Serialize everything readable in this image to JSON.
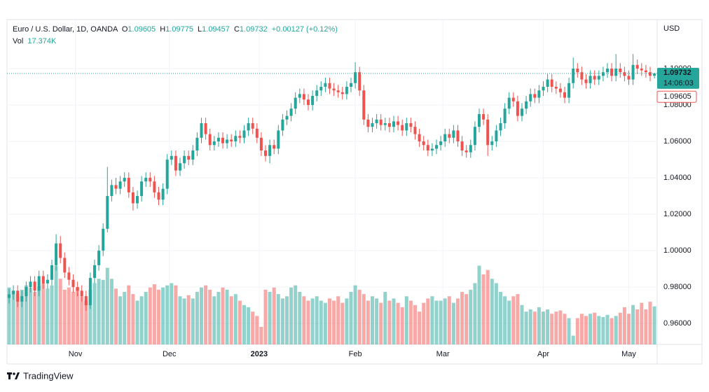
{
  "chart_data": {
    "type": "candlestick",
    "legend": {
      "symbol": "Euro / U.S. Dollar, 1D, OANDA",
      "o_label": "O",
      "o": "1.09605",
      "h_label": "H",
      "h": "1.09775",
      "l_label": "L",
      "l": "1.09457",
      "c_label": "C",
      "c": "1.09732",
      "change": "+0.00127 (+0.12%)",
      "volume_label": "Vol",
      "volume_last_label": "17.374K"
    },
    "currency": "USD",
    "last_price_label": "1.09732",
    "countdown": "14:06:03",
    "prev_close_label": "1.09605",
    "brand": "TradingView",
    "up_color": "#26a69a",
    "down_color": "#ef5350",
    "grid": true,
    "ylim": [
      0.9485,
      1.1269
    ],
    "yticks": [
      {
        "value": 0.96,
        "label": "0.96000"
      },
      {
        "value": 0.98,
        "label": "0.98000"
      },
      {
        "value": 1.0,
        "label": "1.00000"
      },
      {
        "value": 1.02,
        "label": "1.02000"
      },
      {
        "value": 1.04,
        "label": "1.04000"
      },
      {
        "value": 1.06,
        "label": "1.06000"
      },
      {
        "value": 1.08,
        "label": "1.08000"
      },
      {
        "value": 1.1,
        "label": "1.10000"
      }
    ],
    "xticks": [
      {
        "value": 15.5,
        "label": "Nov"
      },
      {
        "value": 37.5,
        "label": "Dec"
      },
      {
        "value": 58.5,
        "label": "2023"
      },
      {
        "value": 81,
        "label": "Feb"
      },
      {
        "value": 101.5,
        "label": "Mar"
      },
      {
        "value": 125,
        "label": "Apr"
      },
      {
        "value": 145,
        "label": "May"
      }
    ],
    "volume_ylim": [
      0,
      40000
    ],
    "open": [
      0.974,
      0.976,
      0.978,
      0.972,
      0.975,
      0.98,
      0.983,
      0.978,
      0.986,
      0.982,
      0.984,
      0.992,
      1.004,
      0.996,
      0.988,
      0.984,
      0.98,
      0.978,
      0.975,
      0.97,
      0.985,
      0.992,
      1.0,
      1.012,
      1.03,
      1.036,
      1.034,
      1.038,
      1.04,
      1.032,
      1.026,
      1.03,
      1.038,
      1.04,
      1.038,
      1.032,
      1.028,
      1.034,
      1.05,
      1.052,
      1.044,
      1.048,
      1.052,
      1.05,
      1.055,
      1.062,
      1.07,
      1.064,
      1.058,
      1.06,
      1.062,
      1.059,
      1.061,
      1.06,
      1.063,
      1.062,
      1.066,
      1.07,
      1.067,
      1.062,
      1.055,
      1.052,
      1.058,
      1.056,
      1.066,
      1.072,
      1.074,
      1.078,
      1.084,
      1.086,
      1.083,
      1.08,
      1.085,
      1.088,
      1.09,
      1.092,
      1.089,
      1.088,
      1.087,
      1.086,
      1.09,
      1.092,
      1.098,
      1.088,
      1.072,
      1.068,
      1.07,
      1.072,
      1.069,
      1.07,
      1.068,
      1.071,
      1.069,
      1.066,
      1.07,
      1.068,
      1.064,
      1.06,
      1.058,
      1.055,
      1.056,
      1.058,
      1.06,
      1.064,
      1.062,
      1.066,
      1.06,
      1.055,
      1.054,
      1.058,
      1.068,
      1.075,
      1.072,
      1.058,
      1.06,
      1.066,
      1.07,
      1.078,
      1.084,
      1.082,
      1.074,
      1.078,
      1.082,
      1.086,
      1.084,
      1.088,
      1.09,
      1.094,
      1.09,
      1.089,
      1.087,
      1.084,
      1.092,
      1.1,
      1.098,
      1.094,
      1.092,
      1.096,
      1.094,
      1.096,
      1.098,
      1.1,
      1.096,
      1.1,
      1.098,
      1.096,
      1.094,
      1.102,
      1.1,
      1.099,
      1.098,
      1.09605
    ],
    "high": [
      0.979,
      0.981,
      0.981,
      0.978,
      0.983,
      0.986,
      0.986,
      0.989,
      0.989,
      0.987,
      0.995,
      1.009,
      1.008,
      0.999,
      0.991,
      0.987,
      0.983,
      0.981,
      0.978,
      0.988,
      0.995,
      1.003,
      1.015,
      1.046,
      1.039,
      1.04,
      1.041,
      1.043,
      1.043,
      1.035,
      1.033,
      1.041,
      1.043,
      1.043,
      1.041,
      1.035,
      1.037,
      1.053,
      1.055,
      1.055,
      1.051,
      1.055,
      1.055,
      1.058,
      1.065,
      1.073,
      1.073,
      1.067,
      1.063,
      1.065,
      1.065,
      1.064,
      1.064,
      1.066,
      1.066,
      1.069,
      1.073,
      1.073,
      1.07,
      1.065,
      1.058,
      1.061,
      1.061,
      1.069,
      1.075,
      1.077,
      1.081,
      1.087,
      1.089,
      1.089,
      1.086,
      1.088,
      1.091,
      1.093,
      1.095,
      1.095,
      1.092,
      1.091,
      1.09,
      1.093,
      1.095,
      1.1035,
      1.101,
      1.091,
      1.075,
      1.073,
      1.075,
      1.075,
      1.073,
      1.073,
      1.074,
      1.074,
      1.072,
      1.073,
      1.073,
      1.071,
      1.067,
      1.063,
      1.061,
      1.059,
      1.061,
      1.063,
      1.067,
      1.067,
      1.069,
      1.069,
      1.063,
      1.058,
      1.061,
      1.071,
      1.078,
      1.078,
      1.075,
      1.063,
      1.069,
      1.073,
      1.081,
      1.087,
      1.087,
      1.085,
      1.081,
      1.085,
      1.089,
      1.089,
      1.091,
      1.093,
      1.097,
      1.097,
      1.093,
      1.092,
      1.09,
      1.095,
      1.106,
      1.103,
      1.101,
      1.097,
      1.099,
      1.099,
      1.099,
      1.101,
      1.103,
      1.103,
      1.108,
      1.103,
      1.101,
      1.099,
      1.108,
      1.105,
      1.103,
      1.102,
      1.101,
      1.09775
    ],
    "low": [
      0.971,
      0.973,
      0.969,
      0.969,
      0.972,
      0.977,
      0.975,
      0.975,
      0.979,
      0.979,
      0.981,
      0.989,
      0.993,
      0.985,
      0.981,
      0.977,
      0.975,
      0.972,
      0.967,
      0.968,
      0.982,
      0.989,
      0.997,
      1.01,
      1.027,
      1.031,
      1.031,
      1.035,
      1.029,
      1.022,
      1.023,
      1.027,
      1.035,
      1.035,
      1.029,
      1.025,
      1.025,
      1.031,
      1.047,
      1.041,
      1.041,
      1.045,
      1.047,
      1.047,
      1.052,
      1.059,
      1.061,
      1.055,
      1.055,
      1.057,
      1.056,
      1.056,
      1.057,
      1.057,
      1.059,
      1.059,
      1.063,
      1.064,
      1.059,
      1.052,
      1.049,
      1.048,
      1.053,
      1.053,
      1.063,
      1.069,
      1.071,
      1.075,
      1.081,
      1.08,
      1.077,
      1.077,
      1.082,
      1.085,
      1.087,
      1.086,
      1.085,
      1.084,
      1.083,
      1.083,
      1.087,
      1.089,
      1.085,
      1.069,
      1.065,
      1.065,
      1.067,
      1.066,
      1.066,
      1.065,
      1.065,
      1.066,
      1.063,
      1.063,
      1.065,
      1.061,
      1.057,
      1.055,
      1.052,
      1.052,
      1.053,
      1.055,
      1.057,
      1.059,
      1.059,
      1.057,
      1.052,
      1.051,
      1.051,
      1.055,
      1.065,
      1.069,
      1.052,
      1.055,
      1.057,
      1.063,
      1.067,
      1.075,
      1.079,
      1.071,
      1.071,
      1.075,
      1.079,
      1.081,
      1.081,
      1.085,
      1.087,
      1.087,
      1.086,
      1.084,
      1.081,
      1.081,
      1.089,
      1.095,
      1.091,
      1.089,
      1.089,
      1.091,
      1.091,
      1.093,
      1.095,
      1.093,
      1.093,
      1.095,
      1.093,
      1.091,
      1.091,
      1.097,
      1.096,
      1.095,
      1.093,
      1.09457
    ],
    "close": [
      0.976,
      0.978,
      0.972,
      0.975,
      0.98,
      0.983,
      0.978,
      0.986,
      0.982,
      0.984,
      0.992,
      1.004,
      0.996,
      0.988,
      0.984,
      0.98,
      0.978,
      0.975,
      0.97,
      0.985,
      0.992,
      1.0,
      1.012,
      1.03,
      1.036,
      1.034,
      1.038,
      1.04,
      1.032,
      1.026,
      1.03,
      1.038,
      1.04,
      1.038,
      1.032,
      1.028,
      1.034,
      1.05,
      1.052,
      1.044,
      1.048,
      1.052,
      1.05,
      1.055,
      1.062,
      1.07,
      1.064,
      1.058,
      1.06,
      1.062,
      1.059,
      1.061,
      1.06,
      1.063,
      1.062,
      1.066,
      1.07,
      1.067,
      1.062,
      1.055,
      1.052,
      1.058,
      1.056,
      1.066,
      1.072,
      1.074,
      1.078,
      1.084,
      1.086,
      1.083,
      1.08,
      1.085,
      1.088,
      1.09,
      1.092,
      1.089,
      1.088,
      1.087,
      1.086,
      1.09,
      1.092,
      1.098,
      1.088,
      1.072,
      1.068,
      1.07,
      1.072,
      1.069,
      1.07,
      1.068,
      1.071,
      1.069,
      1.066,
      1.07,
      1.068,
      1.064,
      1.06,
      1.058,
      1.055,
      1.056,
      1.058,
      1.06,
      1.064,
      1.062,
      1.066,
      1.06,
      1.055,
      1.054,
      1.058,
      1.068,
      1.075,
      1.072,
      1.058,
      1.06,
      1.066,
      1.07,
      1.078,
      1.084,
      1.082,
      1.074,
      1.078,
      1.082,
      1.086,
      1.084,
      1.088,
      1.09,
      1.094,
      1.09,
      1.089,
      1.087,
      1.084,
      1.092,
      1.1,
      1.098,
      1.094,
      1.092,
      1.096,
      1.094,
      1.096,
      1.098,
      1.1,
      1.096,
      1.1,
      1.098,
      1.096,
      1.094,
      1.102,
      1.1,
      1.099,
      1.098,
      1.09605,
      1.09732
    ],
    "volume": [
      26000,
      24500,
      23000,
      25000,
      27000,
      26000,
      24000,
      26500,
      28000,
      25500,
      27000,
      36000,
      30000,
      25000,
      26000,
      24000,
      26000,
      22000,
      20000,
      25000,
      28000,
      30000,
      29500,
      35000,
      30000,
      25500,
      22000,
      24000,
      27000,
      23000,
      20000,
      22000,
      24000,
      26000,
      27500,
      25000,
      26000,
      27000,
      28000,
      27000,
      22000,
      21000,
      22500,
      21000,
      24000,
      26000,
      27000,
      25000,
      22000,
      24000,
      26000,
      25000,
      22000,
      23000,
      20000,
      18000,
      17000,
      15000,
      13000,
      8000,
      25000,
      24000,
      26000,
      23000,
      21000,
      22000,
      26000,
      27000,
      24000,
      22000,
      20000,
      21000,
      22000,
      20000,
      19000,
      21000,
      20000,
      22000,
      19000,
      21000,
      24000,
      27000,
      25000,
      23000,
      20000,
      22000,
      21000,
      19000,
      24000,
      20000,
      21000,
      19000,
      17000,
      22000,
      20000,
      18000,
      15000,
      19000,
      21000,
      22000,
      20000,
      20000,
      21000,
      22000,
      19000,
      21000,
      24000,
      23000,
      25000,
      28000,
      36000,
      32000,
      34000,
      30000,
      28000,
      24000,
      22000,
      20000,
      22000,
      23000,
      18000,
      15000,
      16000,
      15000,
      17000,
      15000,
      16000,
      14000,
      15000,
      15500,
      14000,
      12000,
      4000,
      12000,
      14000,
      13000,
      14000,
      14500,
      13000,
      12500,
      13500,
      12000,
      13000,
      14500,
      17000,
      14000,
      18000,
      16000,
      19000,
      16000,
      19500,
      17374
    ]
  }
}
